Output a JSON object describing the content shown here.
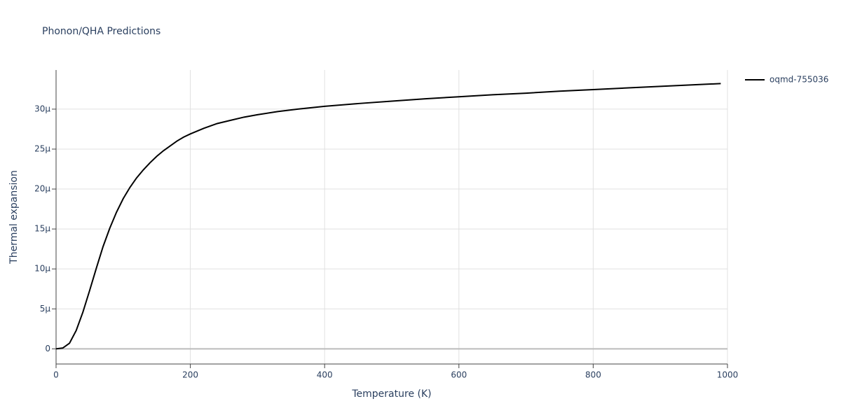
{
  "chart_data": {
    "type": "line",
    "title": "Phonon/QHA Predictions",
    "x_label": "Temperature (K)",
    "y_label": "Thermal expansion",
    "xlim": [
      0,
      1000
    ],
    "ylim": [
      -1.9e-06,
      3.49e-05
    ],
    "xticks": [
      0,
      200,
      400,
      600,
      800,
      1000
    ],
    "yticks": [
      0,
      {
        "value": 5e-06,
        "label": "5μ"
      },
      {
        "value": 1e-05,
        "label": "10μ"
      },
      {
        "value": 1.5e-05,
        "label": "15μ"
      },
      {
        "value": 2e-05,
        "label": "20μ"
      },
      {
        "value": 2.5e-05,
        "label": "25μ"
      },
      {
        "value": 3e-05,
        "label": "30μ"
      }
    ],
    "grid": true,
    "legend": "right",
    "series": [
      {
        "name": "oqmd-755036",
        "color": "#000000",
        "x": [
          0,
          10,
          20,
          30,
          40,
          50,
          60,
          70,
          80,
          90,
          100,
          110,
          120,
          130,
          140,
          150,
          160,
          170,
          180,
          190,
          200,
          220,
          240,
          260,
          280,
          300,
          330,
          360,
          400,
          450,
          500,
          550,
          600,
          650,
          700,
          750,
          800,
          850,
          900,
          950,
          990
        ],
        "values": [
          0,
          1e-07,
          7e-07,
          2.3e-06,
          4.6e-06,
          7.3e-06,
          1.01e-05,
          1.28e-05,
          1.51e-05,
          1.71e-05,
          1.88e-05,
          2.02e-05,
          2.14e-05,
          2.24e-05,
          2.33e-05,
          2.41e-05,
          2.48e-05,
          2.54e-05,
          2.6e-05,
          2.65e-05,
          2.69e-05,
          2.76e-05,
          2.82e-05,
          2.86e-05,
          2.9e-05,
          2.93e-05,
          2.97e-05,
          3e-05,
          3.035e-05,
          3.07e-05,
          3.1e-05,
          3.13e-05,
          3.155e-05,
          3.18e-05,
          3.2e-05,
          3.225e-05,
          3.245e-05,
          3.265e-05,
          3.285e-05,
          3.305e-05,
          3.32e-05
        ]
      }
    ]
  }
}
